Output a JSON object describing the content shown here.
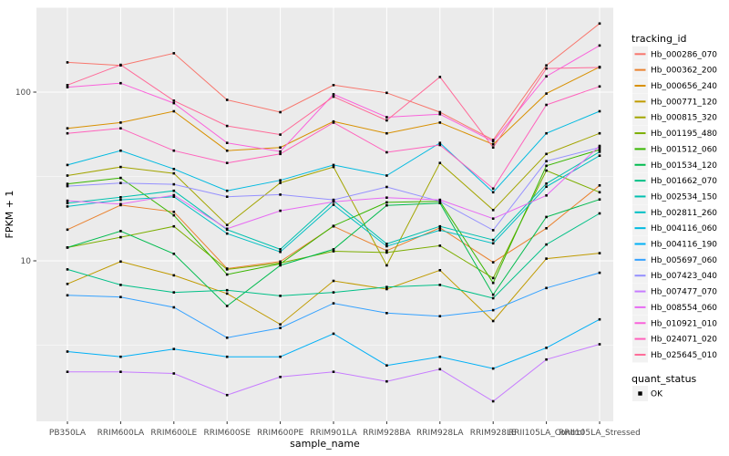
{
  "figure": {
    "background": "#FFFFFF",
    "panel_background": "#EBEBEB",
    "gridline_color": "#FFFFFF",
    "tick_color": "#333333",
    "axis_text_color": "#4D4D4D",
    "title_text_color": "#000000",
    "marker_color": "#000000",
    "legend_key_background": "#F2F2F2"
  },
  "legend": {
    "tracking_title": "tracking_id",
    "quant_title": "quant_status",
    "quant_items": [
      {
        "label": "OK",
        "marker": "black-square"
      }
    ]
  },
  "chart_data": {
    "type": "line",
    "title": "",
    "xlabel": "sample_name",
    "ylabel": "FPKM + 1",
    "y_scale": "log10",
    "y_tick_labels": [
      "100",
      "10"
    ],
    "y_tick_values": [
      100,
      10
    ],
    "y_minor_gridline_values": [
      316.2,
      31.62,
      3.162
    ],
    "ylim": [
      1.12,
      326
    ],
    "grid": true,
    "legend_position": "right",
    "marker": "small-black-square",
    "categories": [
      "PB350LA",
      "RRIM600LA",
      "RRIM600LE",
      "RRIM600SE",
      "RRIM600PE",
      "RRIM901LA",
      "RRIM928BA",
      "RRIM928LA",
      "RRIM928LE",
      "RRII105LA_Control",
      "RRII105LA_Stressed"
    ],
    "series": [
      {
        "name": "Hb_000286_070",
        "color": "#F8766D",
        "values": [
          150,
          144,
          170,
          90,
          76,
          110,
          99,
          76,
          52,
          144,
          255
        ]
      },
      {
        "name": "Hb_000362_200",
        "color": "#EA8331",
        "values": [
          15.3,
          21.4,
          19.5,
          9.0,
          9.9,
          16.0,
          11.5,
          15.7,
          9.8,
          15.6,
          28.0
        ]
      },
      {
        "name": "Hb_000656_240",
        "color": "#D89000",
        "values": [
          61,
          66,
          77,
          45,
          47,
          67,
          57,
          66,
          49,
          98,
          141
        ]
      },
      {
        "name": "Hb_000771_120",
        "color": "#C09B00",
        "values": [
          7.3,
          9.9,
          8.2,
          6.4,
          4.2,
          7.6,
          6.8,
          8.8,
          4.4,
          10.3,
          11.1
        ]
      },
      {
        "name": "Hb_000815_320",
        "color": "#A3A500",
        "values": [
          32,
          36,
          33,
          16.3,
          29,
          36,
          9.4,
          38,
          20,
          43,
          57
        ]
      },
      {
        "name": "Hb_001195_480",
        "color": "#7CAE00",
        "values": [
          12.0,
          13.8,
          16.0,
          8.9,
          9.7,
          11.4,
          11.2,
          12.3,
          7.9,
          34.3,
          25.5
        ]
      },
      {
        "name": "Hb_001512_060",
        "color": "#39B600",
        "values": [
          28.6,
          31,
          18.6,
          8.3,
          9.6,
          16.1,
          22.2,
          22.5,
          7.4,
          36.6,
          45.6
        ]
      },
      {
        "name": "Hb_001534_120",
        "color": "#00BB4E",
        "values": [
          12.0,
          15.0,
          11.0,
          5.4,
          9.4,
          11.7,
          21.3,
          22.0,
          6.3,
          18.2,
          23.1
        ]
      },
      {
        "name": "Hb_001662_070",
        "color": "#00C087",
        "values": [
          8.9,
          7.2,
          6.5,
          6.7,
          6.2,
          6.5,
          7.0,
          7.2,
          6.0,
          12.5,
          19.1
        ]
      },
      {
        "name": "Hb_002534_150",
        "color": "#00C0AF",
        "values": [
          22.0,
          23.8,
          26.0,
          15.3,
          11.7,
          22.7,
          12.6,
          16.0,
          13.3,
          28.7,
          44.3
        ]
      },
      {
        "name": "Hb_002811_260",
        "color": "#00BFC4",
        "values": [
          21.0,
          23.0,
          24.0,
          14.5,
          11.3,
          21.5,
          12.2,
          15.2,
          12.7,
          27.5,
          42.0
        ]
      },
      {
        "name": "Hb_004116_060",
        "color": "#00BAE0",
        "values": [
          37,
          45,
          35,
          26,
          30,
          37,
          32,
          50,
          25.5,
          57,
          77
        ]
      },
      {
        "name": "Hb_004116_190",
        "color": "#00B0F6",
        "values": [
          2.9,
          2.7,
          3.0,
          2.7,
          2.7,
          3.7,
          2.4,
          2.7,
          2.3,
          3.05,
          4.5
        ]
      },
      {
        "name": "Hb_005697_060",
        "color": "#35A2FF",
        "values": [
          6.25,
          6.1,
          5.3,
          3.5,
          4.0,
          5.6,
          4.9,
          4.7,
          5.1,
          6.9,
          8.5
        ]
      },
      {
        "name": "Hb_007423_040",
        "color": "#9590FF",
        "values": [
          27.7,
          28.9,
          28.4,
          24.0,
          24.7,
          23.0,
          27.4,
          22.5,
          15.2,
          39,
          47
        ]
      },
      {
        "name": "Hb_007477_070",
        "color": "#C77CFF",
        "values": [
          2.2,
          2.2,
          2.15,
          1.6,
          2.05,
          2.2,
          1.93,
          2.28,
          1.47,
          2.6,
          3.2
        ]
      },
      {
        "name": "Hb_008554_060",
        "color": "#E76BF3",
        "values": [
          22.7,
          21.7,
          24.5,
          15.5,
          19.8,
          22.4,
          23.7,
          23.0,
          17.8,
          24.4,
          48.0
        ]
      },
      {
        "name": "Hb_010921_010",
        "color": "#FA62DB",
        "values": [
          107,
          113,
          86,
          50,
          44.5,
          97,
          71,
          74,
          51,
          124,
          189
        ]
      },
      {
        "name": "Hb_024071_020",
        "color": "#FF62BC",
        "values": [
          57,
          61,
          45,
          38,
          43,
          66,
          44,
          48.6,
          26.8,
          84,
          108
        ]
      },
      {
        "name": "Hb_025645_010",
        "color": "#FF6A98",
        "values": [
          110,
          145,
          89,
          63,
          56,
          94,
          68,
          123,
          47,
          138,
          140
        ]
      }
    ]
  }
}
